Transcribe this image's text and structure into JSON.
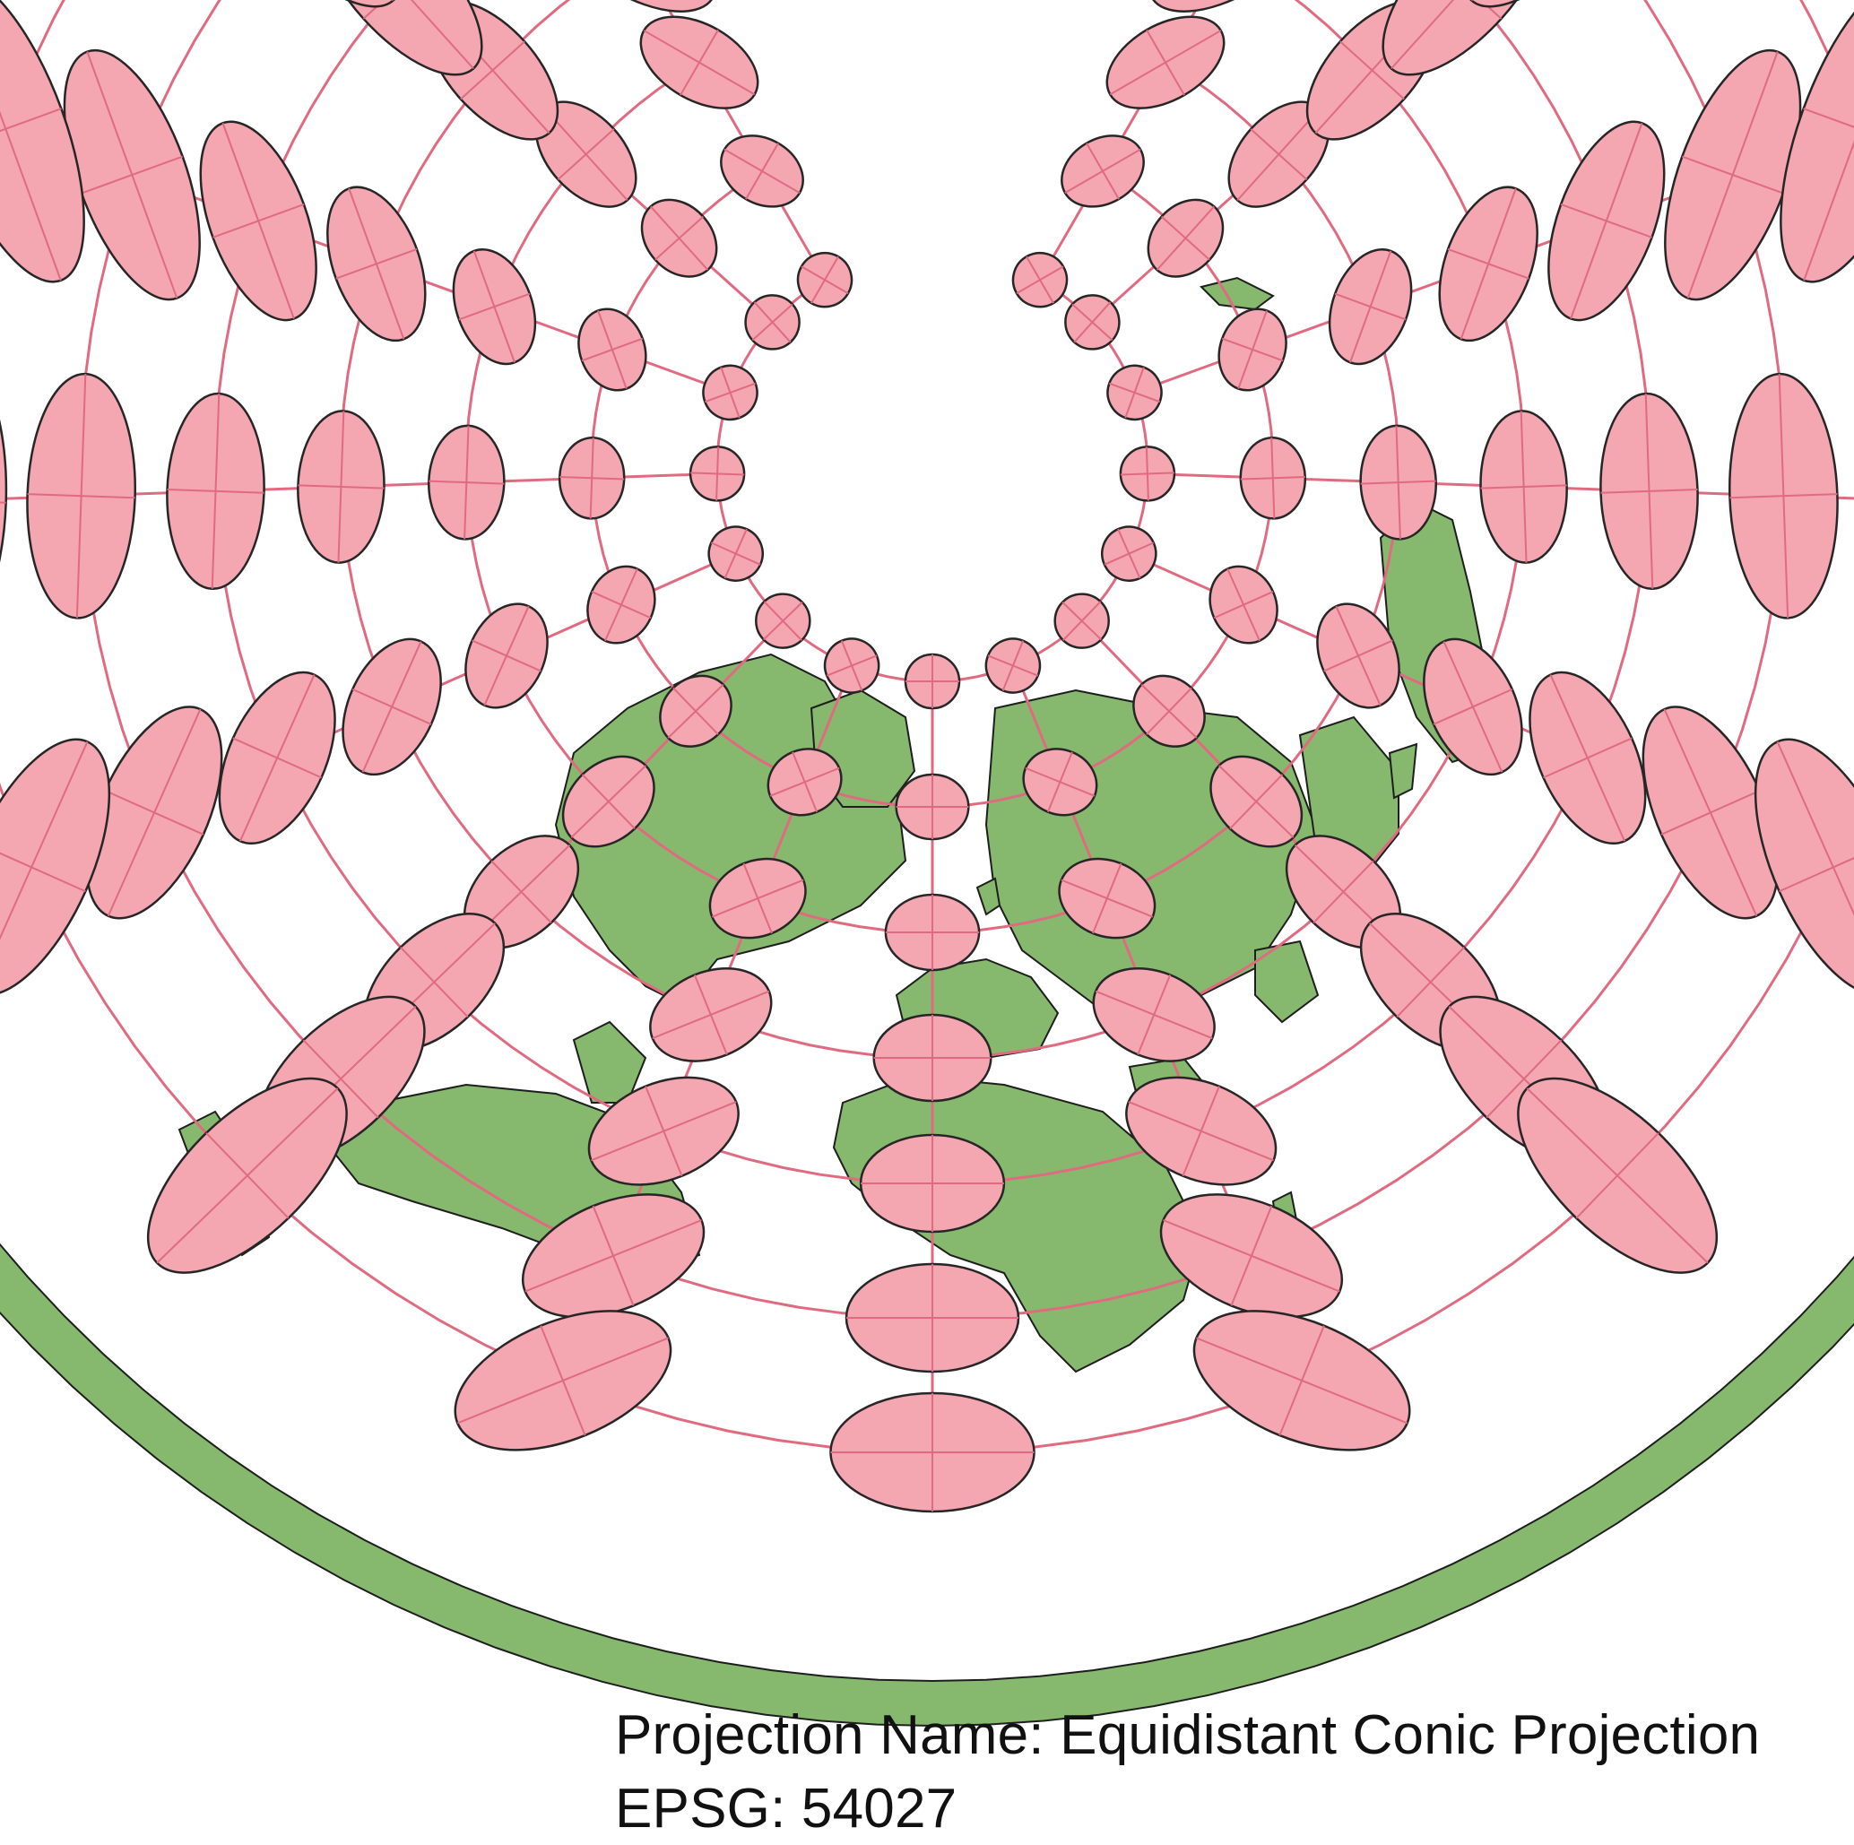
{
  "projection": {
    "name_label": "Projection Name: Equidistant Conic Projection",
    "epsg_label": "EPSG: 54027"
  },
  "colors": {
    "land": "#86b86e",
    "land_stroke": "#1e1e1e",
    "ellipse_fill": "#f4a6b1",
    "ellipse_stroke": "#262626",
    "graticule": "#e06b80",
    "background": "#ffffff"
  },
  "map": {
    "type": "world-map",
    "tissot_indicatrix": true,
    "graticule": true
  }
}
